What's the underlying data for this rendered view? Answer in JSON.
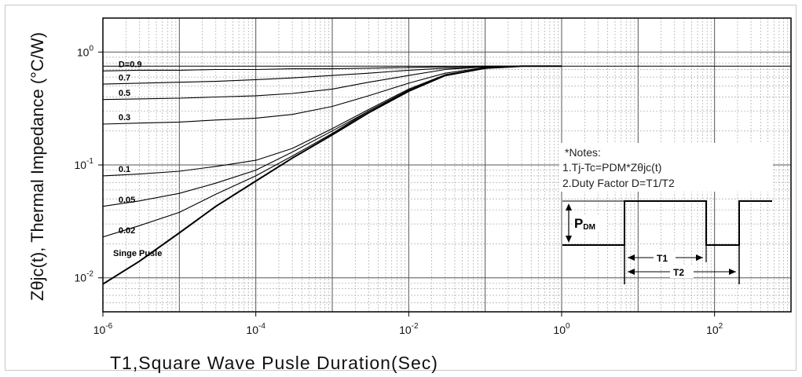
{
  "chart_data": {
    "type": "line",
    "xlabel": "T1,Square Wave Pusle Duration(Sec)",
    "ylabel": "Zθjc(t), Thermal Impedance (°C/W)",
    "x_scale": "log",
    "y_scale": "log",
    "xlim": [
      1e-06,
      1000
    ],
    "ylim": [
      0.005,
      2
    ],
    "grid": true,
    "x_ticks": [
      {
        "value": 1e-06,
        "base": "10",
        "exp": "-6"
      },
      {
        "value": 0.0001,
        "base": "10",
        "exp": "-4"
      },
      {
        "value": 0.01,
        "base": "10",
        "exp": "-2"
      },
      {
        "value": 1,
        "base": "10",
        "exp": "0"
      },
      {
        "value": 100,
        "base": "10",
        "exp": "2"
      }
    ],
    "y_ticks": [
      {
        "value": 1,
        "base": "10",
        "exp": "0"
      },
      {
        "value": 0.1,
        "base": "10",
        "exp": "-1"
      },
      {
        "value": 0.01,
        "base": "10",
        "exp": "-2"
      }
    ],
    "x": [
      1e-06,
      3e-06,
      1e-05,
      3e-05,
      0.0001,
      0.0003,
      0.001,
      0.003,
      0.01,
      0.03,
      0.1,
      0.3
    ],
    "series": [
      {
        "name": "D=0.9",
        "values": [
          0.68,
          0.69,
          0.69,
          0.7,
          0.7,
          0.71,
          0.71,
          0.72,
          0.73,
          0.74,
          0.75,
          0.75
        ]
      },
      {
        "name": "0.7",
        "values": [
          0.52,
          0.53,
          0.54,
          0.55,
          0.57,
          0.59,
          0.62,
          0.65,
          0.69,
          0.72,
          0.74,
          0.75
        ]
      },
      {
        "name": "0.5",
        "values": [
          0.38,
          0.385,
          0.39,
          0.4,
          0.41,
          0.43,
          0.47,
          0.54,
          0.62,
          0.7,
          0.74,
          0.75
        ]
      },
      {
        "name": "0.3",
        "values": [
          0.23,
          0.235,
          0.24,
          0.25,
          0.26,
          0.28,
          0.33,
          0.41,
          0.53,
          0.65,
          0.73,
          0.75
        ]
      },
      {
        "name": "0.1",
        "values": [
          0.08,
          0.083,
          0.088,
          0.097,
          0.11,
          0.14,
          0.21,
          0.31,
          0.47,
          0.63,
          0.72,
          0.75
        ]
      },
      {
        "name": "0.05",
        "values": [
          0.043,
          0.048,
          0.056,
          0.069,
          0.09,
          0.13,
          0.2,
          0.3,
          0.46,
          0.62,
          0.72,
          0.75
        ]
      },
      {
        "name": "0.02",
        "values": [
          0.023,
          0.029,
          0.038,
          0.055,
          0.08,
          0.12,
          0.19,
          0.3,
          0.46,
          0.62,
          0.72,
          0.75
        ]
      },
      {
        "name": "Singe Pusle",
        "values": [
          0.0088,
          0.014,
          0.025,
          0.043,
          0.072,
          0.115,
          0.185,
          0.29,
          0.45,
          0.62,
          0.72,
          0.75
        ]
      }
    ],
    "annotations": {
      "notes_title": "*Notes:",
      "note1": "1.Tj-Tc=PDM*Zθjc(t)",
      "note2": "2.Duty Factor D=T1/T2",
      "pdm_label": "PDM",
      "t1_label": "T1",
      "t2_label": "T2"
    }
  }
}
